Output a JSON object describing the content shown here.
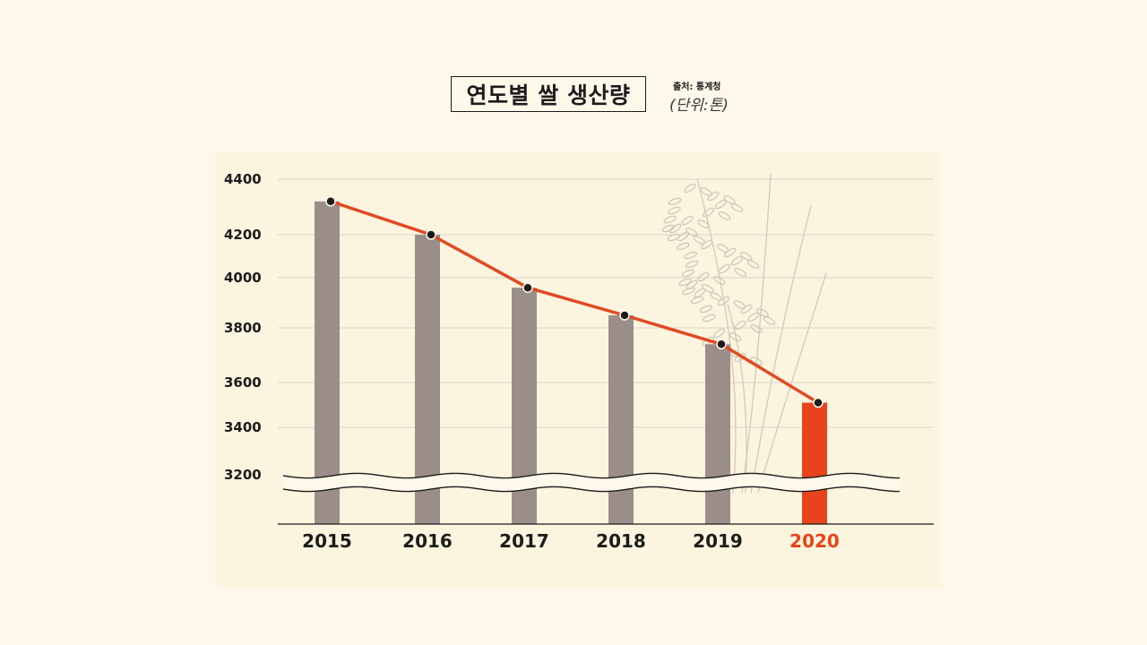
{
  "title": "연도별 쌀 생산량",
  "source": "출처: 통계청",
  "unit": "(단위:톤)",
  "colors": {
    "background": "#fdf8ea",
    "panel": "#fbf4de",
    "bar": "#9b8e8a",
    "highlight_bar": "#e8431c",
    "line": "#e04a24",
    "marker": "#1c1c1c",
    "text": "#1c1c1c",
    "highlight_text": "#e8431c",
    "grid": "#d9d6cc"
  },
  "chart_data": {
    "type": "bar",
    "categories": [
      "2015",
      "2016",
      "2017",
      "2018",
      "2019",
      "2020"
    ],
    "values": [
      4320,
      4200,
      3960,
      3850,
      3740,
      3510
    ],
    "highlight_category": "2020",
    "overlay": "line",
    "yticks": [
      "4400",
      "4200",
      "4000",
      "3800",
      "3600",
      "3400",
      "3200"
    ],
    "ylim": [
      3200,
      4400
    ],
    "axis_break": "between 3200 and 3400",
    "grid": true,
    "decoration": "rice plant illustration"
  }
}
